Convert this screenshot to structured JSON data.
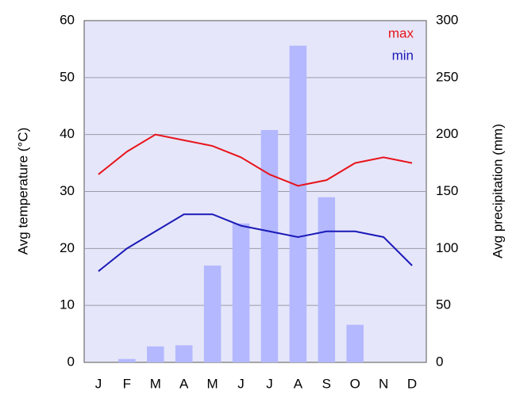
{
  "chart_data": {
    "type": "bar",
    "categories": [
      "J",
      "F",
      "M",
      "A",
      "M",
      "J",
      "J",
      "A",
      "S",
      "O",
      "N",
      "D"
    ],
    "series": [
      {
        "type": "bar",
        "axis": "y2",
        "color": "#b3b8ff",
        "values": [
          0,
          3,
          14,
          15,
          85,
          122,
          204,
          278,
          145,
          33,
          0,
          0
        ]
      },
      {
        "type": "line",
        "name": "max",
        "color": "#e8141b",
        "values": [
          33,
          37,
          40,
          39,
          38,
          36,
          33,
          31,
          32,
          35,
          36,
          35
        ]
      },
      {
        "type": "line",
        "name": "min",
        "color": "#1a1ab8",
        "values": [
          16,
          20,
          23,
          26,
          26,
          24,
          23,
          22,
          23,
          23,
          22,
          17
        ]
      }
    ],
    "ylabel": "Avg temperature (°C)",
    "y2label": "Avg precipitation (mm)",
    "ylim": [
      0,
      60
    ],
    "yticks": [
      0,
      10,
      20,
      30,
      40,
      50,
      60
    ],
    "y2lim": [
      0,
      300
    ],
    "y2ticks": [
      0,
      50,
      100,
      150,
      200,
      250,
      300
    ],
    "grid": true,
    "legend": "top-right"
  }
}
